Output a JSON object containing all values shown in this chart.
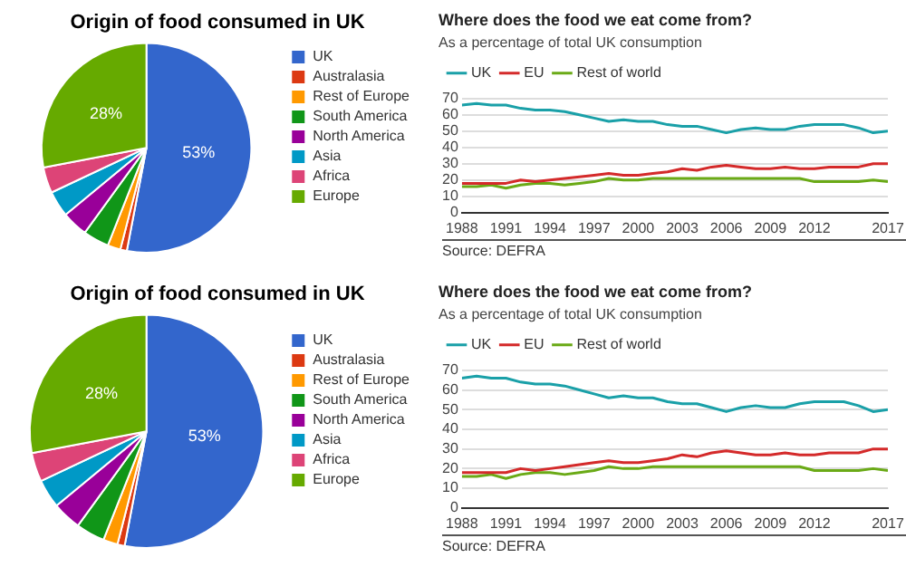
{
  "chart_data": [
    {
      "type": "pie",
      "title": "Origin of food consumed in UK",
      "categories": [
        "UK",
        "Australasia",
        "Rest of Europe",
        "South America",
        "North America",
        "Asia",
        "Africa",
        "Europe"
      ],
      "values": [
        53,
        1,
        2,
        4,
        4,
        4,
        4,
        28
      ],
      "colors": [
        "#3366cc",
        "#dc3912",
        "#ff9900",
        "#109618",
        "#990099",
        "#0099c6",
        "#dd4477",
        "#66aa00"
      ],
      "value_labels": [
        "53%",
        null,
        null,
        null,
        null,
        null,
        null,
        "28%"
      ],
      "legend": "right"
    },
    {
      "type": "line",
      "title": "Where does the food we eat come from?",
      "subtitle": "As a percentage of total UK consumption",
      "x": [
        1988,
        1989,
        1990,
        1991,
        1992,
        1993,
        1994,
        1995,
        1996,
        1997,
        1998,
        1999,
        2000,
        2001,
        2002,
        2003,
        2004,
        2005,
        2006,
        2007,
        2008,
        2009,
        2010,
        2011,
        2012,
        2013,
        2014,
        2015,
        2016,
        2017
      ],
      "series": [
        {
          "name": "UK",
          "color": "#1aa0a8",
          "values": [
            66,
            67,
            66,
            66,
            64,
            63,
            63,
            62,
            60,
            58,
            56,
            57,
            56,
            56,
            54,
            53,
            53,
            51,
            49,
            51,
            52,
            51,
            51,
            53,
            54,
            54,
            54,
            52,
            49,
            50
          ]
        },
        {
          "name": "EU",
          "color": "#d42a2a",
          "values": [
            18,
            18,
            18,
            18,
            20,
            19,
            20,
            21,
            22,
            23,
            24,
            23,
            23,
            24,
            25,
            27,
            26,
            28,
            29,
            28,
            27,
            27,
            28,
            27,
            27,
            28,
            28,
            28,
            30,
            30
          ]
        },
        {
          "name": "Rest of world",
          "color": "#6aaa16",
          "values": [
            16,
            16,
            17,
            15,
            17,
            18,
            18,
            17,
            18,
            19,
            21,
            20,
            20,
            21,
            21,
            21,
            21,
            21,
            21,
            21,
            21,
            21,
            21,
            21,
            19,
            19,
            19,
            19,
            20,
            19
          ]
        }
      ],
      "xlim": [
        1988,
        2017
      ],
      "xticks": [
        1988,
        1991,
        1994,
        1997,
        2000,
        2003,
        2006,
        2009,
        2012,
        2017
      ],
      "ylim": [
        0,
        70
      ],
      "yticks": [
        0,
        10,
        20,
        30,
        40,
        50,
        60,
        70
      ],
      "grid": "y",
      "legend": "top left",
      "annotations": [
        "Source: DEFRA"
      ]
    },
    {
      "type": "pie",
      "title": "Origin of food consumed in UK",
      "categories": [
        "UK",
        "Australasia",
        "Rest of Europe",
        "South America",
        "North America",
        "Asia",
        "Africa",
        "Europe"
      ],
      "values": [
        53,
        1,
        2,
        4,
        4,
        4,
        4,
        28
      ],
      "colors": [
        "#3366cc",
        "#dc3912",
        "#ff9900",
        "#109618",
        "#990099",
        "#0099c6",
        "#dd4477",
        "#66aa00"
      ],
      "value_labels": [
        "53%",
        null,
        null,
        null,
        null,
        null,
        null,
        "28%"
      ],
      "legend": "right"
    },
    {
      "type": "line",
      "title": "Where does the food we eat come from?",
      "subtitle": "As a percentage of total UK consumption",
      "x": [
        1988,
        1989,
        1990,
        1991,
        1992,
        1993,
        1994,
        1995,
        1996,
        1997,
        1998,
        1999,
        2000,
        2001,
        2002,
        2003,
        2004,
        2005,
        2006,
        2007,
        2008,
        2009,
        2010,
        2011,
        2012,
        2013,
        2014,
        2015,
        2016,
        2017
      ],
      "series": [
        {
          "name": "UK",
          "color": "#1aa0a8",
          "values": [
            66,
            67,
            66,
            66,
            64,
            63,
            63,
            62,
            60,
            58,
            56,
            57,
            56,
            56,
            54,
            53,
            53,
            51,
            49,
            51,
            52,
            51,
            51,
            53,
            54,
            54,
            54,
            52,
            49,
            50
          ]
        },
        {
          "name": "EU",
          "color": "#d42a2a",
          "values": [
            18,
            18,
            18,
            18,
            20,
            19,
            20,
            21,
            22,
            23,
            24,
            23,
            23,
            24,
            25,
            27,
            26,
            28,
            29,
            28,
            27,
            27,
            28,
            27,
            27,
            28,
            28,
            28,
            30,
            30
          ]
        },
        {
          "name": "Rest of world",
          "color": "#6aaa16",
          "values": [
            16,
            16,
            17,
            15,
            17,
            18,
            18,
            17,
            18,
            19,
            21,
            20,
            20,
            21,
            21,
            21,
            21,
            21,
            21,
            21,
            21,
            21,
            21,
            21,
            19,
            19,
            19,
            19,
            20,
            19
          ]
        }
      ],
      "xlim": [
        1988,
        2017
      ],
      "xticks": [
        1988,
        1991,
        1994,
        1997,
        2000,
        2003,
        2006,
        2009,
        2012,
        2017
      ],
      "ylim": [
        0,
        70
      ],
      "yticks": [
        0,
        10,
        20,
        30,
        40,
        50,
        60,
        70
      ],
      "grid": "y",
      "legend": "top left",
      "annotations": [
        "Source: DEFRA"
      ]
    }
  ]
}
